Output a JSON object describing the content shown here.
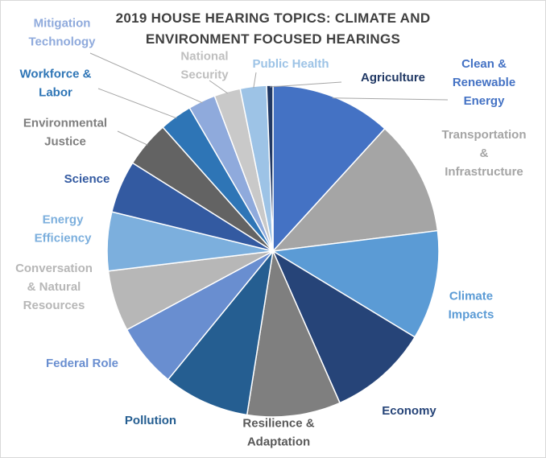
{
  "chart_data": {
    "type": "pie",
    "title_lines": [
      "2019 HOUSE HEARING TOPICS: CLIMATE AND",
      "ENVIRONMENT FOCUSED HEARINGS"
    ],
    "categories": [
      "Clean & Renewable Energy",
      "Transportation & Infrastructure",
      "Climate Impacts",
      "Economy",
      "Resilience & Adaptation",
      "Pollution",
      "Federal Role",
      "Conversation & Natural Resources",
      "Energy Efficiency",
      "Science",
      "Environmental Justice",
      "Workforce & Labor",
      "Mitigation Technology",
      "National Security",
      "Public Health",
      "Agriculture"
    ],
    "values": [
      11.5,
      11.0,
      10.4,
      9.5,
      8.9,
      8.2,
      6.1,
      5.8,
      5.6,
      5.0,
      4.4,
      3.1,
      2.6,
      2.5,
      2.5,
      0.6
    ],
    "colors": [
      "#4472C4",
      "#A5A5A5",
      "#5B9BD5",
      "#264478",
      "#7F7F7F",
      "#255E91",
      "#698ED0",
      "#B7B7B7",
      "#7CAFDD",
      "#335AA1",
      "#636363",
      "#2E75B6",
      "#8FAADC",
      "#C9C9C9",
      "#9DC3E6",
      "#203864"
    ],
    "label_lines": [
      [
        "Clean &",
        "Renewable",
        "Energy"
      ],
      [
        "Transportation",
        "&",
        "Infrastructure"
      ],
      [
        "Climate",
        "Impacts"
      ],
      [
        "Economy"
      ],
      [
        "Resilience &",
        "Adaptation"
      ],
      [
        "Pollution"
      ],
      [
        "Federal Role"
      ],
      [
        "Conversation",
        "& Natural",
        "Resources"
      ],
      [
        "Energy",
        "Efficiency"
      ],
      [
        "Science"
      ],
      [
        "Environmental",
        "Justice"
      ],
      [
        "Workforce &",
        "Labor"
      ],
      [
        "Mitigation",
        "Technology"
      ],
      [
        "National",
        "Security"
      ],
      [
        "Public Health"
      ],
      [
        "Agriculture"
      ]
    ],
    "label_colors": [
      "#4472C4",
      "#A5A5A5",
      "#5B9BD5",
      "#264478",
      "#595959",
      "#255E91",
      "#698ED0",
      "#B7B7B7",
      "#7CAFDD",
      "#335AA1",
      "#7F7F7F",
      "#2E75B6",
      "#8FAADC",
      "#BFBFBF",
      "#9DC3E6",
      "#203864"
    ],
    "legend": "none"
  }
}
